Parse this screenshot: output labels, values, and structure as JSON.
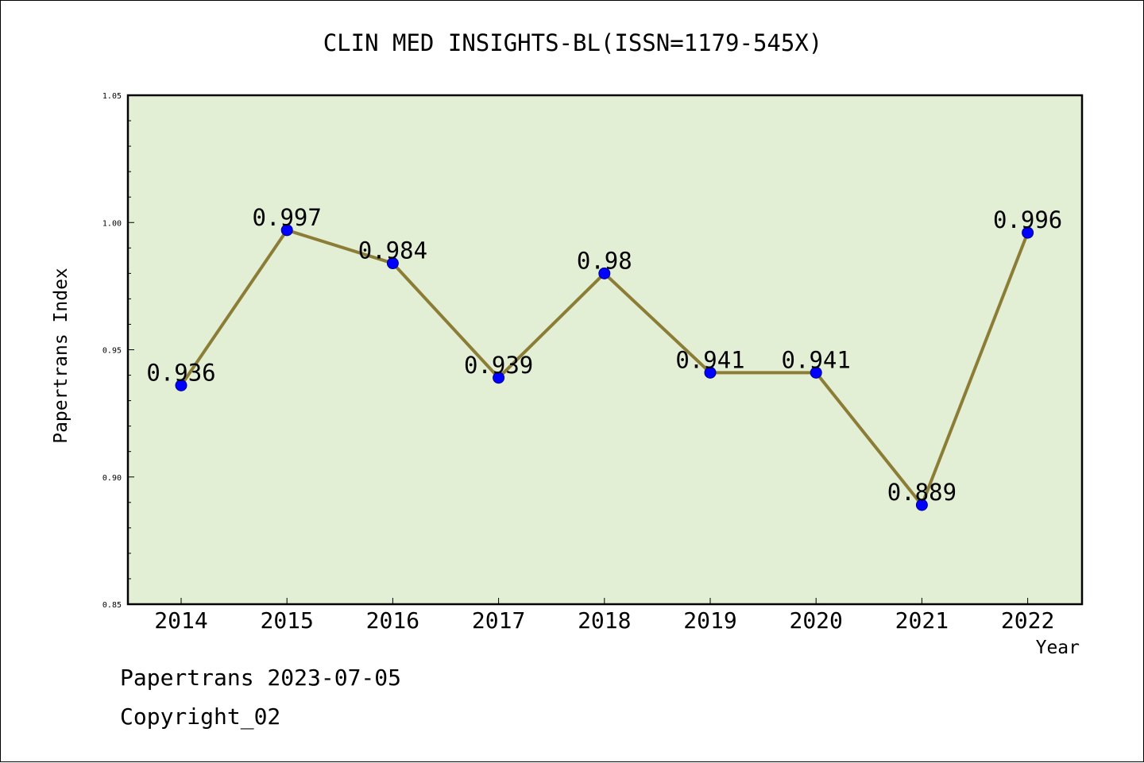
{
  "chart_data": {
    "type": "line",
    "title": "CLIN MED INSIGHTS-BL(ISSN=1179-545X)",
    "xlabel": "Year",
    "ylabel": "Papertrans Index",
    "x": [
      "2014",
      "2015",
      "2016",
      "2017",
      "2018",
      "2019",
      "2020",
      "2021",
      "2022"
    ],
    "series": [
      {
        "values": [
          0.936,
          0.997,
          0.984,
          0.939,
          0.98,
          0.941,
          0.941,
          0.889,
          0.996
        ],
        "labels": [
          "0.936",
          "0.997",
          "0.984",
          "0.939",
          "0.98",
          "0.941",
          "0.941",
          "0.889",
          "0.996"
        ],
        "line_color": "#8b7d35",
        "marker_color": "#0000ff"
      }
    ],
    "ylim": [
      0.85,
      1.05
    ],
    "yticks": [
      "0.85",
      "0.90",
      "0.95",
      "1.00",
      "1.05"
    ],
    "plot_background": "#e2efd5",
    "grid": false
  },
  "footer": {
    "line1": "Papertrans 2023-07-05",
    "line2": "Copyright_02"
  }
}
